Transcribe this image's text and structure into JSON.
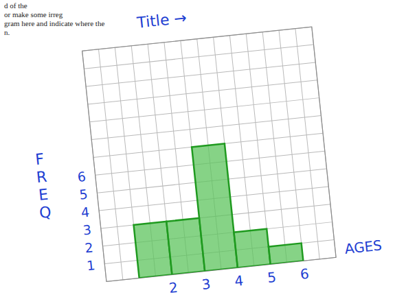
{
  "chart_data": {
    "type": "histogram",
    "title": "Title →",
    "x_label": "AGES",
    "y_label": "FREQ",
    "bins": [
      1,
      2,
      3,
      4,
      5,
      6
    ],
    "values": [
      3,
      3,
      7,
      2,
      1
    ],
    "color": "#5ec45e",
    "xlim": [
      0,
      7
    ],
    "ylim": [
      0,
      13
    ],
    "xticks": [
      2,
      3,
      4,
      5,
      6
    ],
    "yticks": [
      1,
      2,
      3,
      4,
      5,
      6
    ],
    "grid": true,
    "annotations": [
      "d of the",
      "or make some irreg",
      "gram here and indicate where the",
      "n."
    ]
  }
}
